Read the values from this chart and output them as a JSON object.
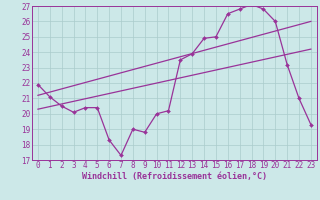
{
  "bg_color": "#cce8e8",
  "grid_color": "#aacccc",
  "line_color": "#993399",
  "xlim": [
    -0.5,
    23.5
  ],
  "ylim": [
    17,
    27
  ],
  "xticks": [
    0,
    1,
    2,
    3,
    4,
    5,
    6,
    7,
    8,
    9,
    10,
    11,
    12,
    13,
    14,
    15,
    16,
    17,
    18,
    19,
    20,
    21,
    22,
    23
  ],
  "yticks": [
    17,
    18,
    19,
    20,
    21,
    22,
    23,
    24,
    25,
    26,
    27
  ],
  "line1_x": [
    0,
    1,
    2,
    3,
    4,
    5,
    6,
    7,
    8,
    9,
    10,
    11,
    12,
    13,
    14,
    15,
    16,
    17,
    18,
    19,
    20,
    21,
    22,
    23
  ],
  "line1_y": [
    21.9,
    21.1,
    20.5,
    20.1,
    20.4,
    20.4,
    18.3,
    17.3,
    19.0,
    18.8,
    20.0,
    20.2,
    23.5,
    23.9,
    24.9,
    25.0,
    26.5,
    26.8,
    27.1,
    26.8,
    26.0,
    23.2,
    21.0,
    19.3
  ],
  "line2_x": [
    0,
    23
  ],
  "line2_y": [
    21.2,
    26.0
  ],
  "line3_x": [
    0,
    23
  ],
  "line3_y": [
    20.3,
    24.2
  ],
  "xlabel": "Windchill (Refroidissement éolien,°C)",
  "xlabel_fontsize": 6.0,
  "tick_fontsize": 5.5
}
